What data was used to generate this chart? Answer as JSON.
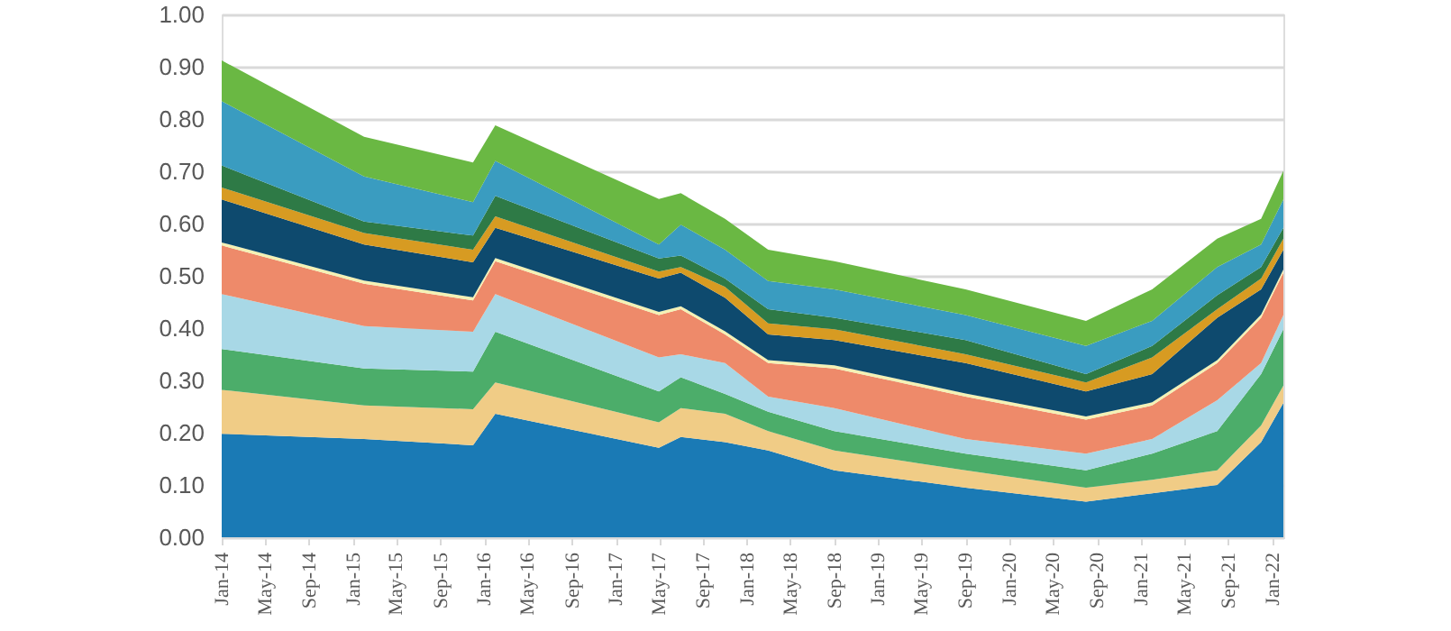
{
  "chart_data": {
    "type": "area",
    "stacked": true,
    "grid": "y",
    "x": [
      "2014-01",
      "2015-02",
      "2015-12",
      "2016-02",
      "2017-05",
      "2017-07",
      "2017-11",
      "2018-03",
      "2018-09",
      "2019-09",
      "2020-08",
      "2021-02",
      "2021-08",
      "2021-12",
      "2022-02"
    ],
    "xlim": [
      "2014-01",
      "2022-02"
    ],
    "xticks": [
      {
        "value": "2014-01",
        "label": "Jan-14"
      },
      {
        "value": "2014-05",
        "label": "May-14"
      },
      {
        "value": "2014-09",
        "label": "Sep-14"
      },
      {
        "value": "2015-01",
        "label": "Jan-15"
      },
      {
        "value": "2015-05",
        "label": "May-15"
      },
      {
        "value": "2015-09",
        "label": "Sep-15"
      },
      {
        "value": "2016-01",
        "label": "Jan-16"
      },
      {
        "value": "2016-05",
        "label": "May-16"
      },
      {
        "value": "2016-09",
        "label": "Sep-16"
      },
      {
        "value": "2017-01",
        "label": "Jan-17"
      },
      {
        "value": "2017-05",
        "label": "May-17"
      },
      {
        "value": "2017-09",
        "label": "Sep-17"
      },
      {
        "value": "2018-01",
        "label": "Jan-18"
      },
      {
        "value": "2018-05",
        "label": "May-18"
      },
      {
        "value": "2018-09",
        "label": "Sep-18"
      },
      {
        "value": "2019-01",
        "label": "Jan-19"
      },
      {
        "value": "2019-05",
        "label": "May-19"
      },
      {
        "value": "2019-09",
        "label": "Sep-19"
      },
      {
        "value": "2020-01",
        "label": "Jan-20"
      },
      {
        "value": "2020-05",
        "label": "May-20"
      },
      {
        "value": "2020-09",
        "label": "Sep-20"
      },
      {
        "value": "2021-01",
        "label": "Jan-21"
      },
      {
        "value": "2021-05",
        "label": "May-21"
      },
      {
        "value": "2021-09",
        "label": "Sep-21"
      },
      {
        "value": "2022-01",
        "label": "Jan-22"
      }
    ],
    "ylim": [
      0,
      1
    ],
    "yticks": [
      {
        "value": 0,
        "label": "0.00"
      },
      {
        "value": 0.1,
        "label": "0.10"
      },
      {
        "value": 0.2,
        "label": "0.20"
      },
      {
        "value": 0.3,
        "label": "0.30"
      },
      {
        "value": 0.4,
        "label": "0.40"
      },
      {
        "value": 0.5,
        "label": "0.50"
      },
      {
        "value": 0.6,
        "label": "0.60"
      },
      {
        "value": 0.7,
        "label": "0.70"
      },
      {
        "value": 0.8,
        "label": "0.80"
      },
      {
        "value": 0.9,
        "label": "0.90"
      },
      {
        "value": 1,
        "label": "1.00"
      }
    ],
    "series": [
      {
        "color": "#1a7ab5",
        "values": [
          0.198,
          0.188,
          0.176,
          0.236,
          0.171,
          0.192,
          0.182,
          0.166,
          0.128,
          0.095,
          0.068,
          0.084,
          0.1,
          0.182,
          0.257
        ]
      },
      {
        "color": "#f0cc86",
        "values": [
          0.084,
          0.064,
          0.069,
          0.06,
          0.049,
          0.055,
          0.054,
          0.037,
          0.038,
          0.033,
          0.027,
          0.026,
          0.028,
          0.032,
          0.033
        ]
      },
      {
        "color": "#4cad6a",
        "values": [
          0.078,
          0.071,
          0.072,
          0.097,
          0.059,
          0.059,
          0.038,
          0.037,
          0.037,
          0.032,
          0.033,
          0.05,
          0.075,
          0.098,
          0.108
        ]
      },
      {
        "color": "#a8d8e6",
        "values": [
          0.105,
          0.081,
          0.076,
          0.072,
          0.065,
          0.044,
          0.059,
          0.029,
          0.044,
          0.028,
          0.032,
          0.028,
          0.059,
          0.021,
          0.027
        ]
      },
      {
        "color": "#ee8a6a",
        "values": [
          0.093,
          0.081,
          0.06,
          0.063,
          0.081,
          0.086,
          0.055,
          0.064,
          0.076,
          0.081,
          0.065,
          0.064,
          0.071,
          0.087,
          0.081
        ]
      },
      {
        "color": "#f4f1b4",
        "values": [
          0.006,
          0.006,
          0.006,
          0.006,
          0.006,
          0.006,
          0.006,
          0.006,
          0.006,
          0.006,
          0.006,
          0.006,
          0.006,
          0.006,
          0.006
        ]
      },
      {
        "color": "#0e4a6e",
        "values": [
          0.082,
          0.069,
          0.067,
          0.058,
          0.064,
          0.064,
          0.064,
          0.049,
          0.048,
          0.058,
          0.048,
          0.054,
          0.081,
          0.048,
          0.038
        ]
      },
      {
        "color": "#d79b22",
        "values": [
          0.023,
          0.022,
          0.024,
          0.022,
          0.013,
          0.011,
          0.021,
          0.021,
          0.021,
          0.017,
          0.017,
          0.032,
          0.016,
          0.021,
          0.021
        ]
      },
      {
        "color": "#2e7a46",
        "values": [
          0.042,
          0.022,
          0.027,
          0.039,
          0.025,
          0.022,
          0.016,
          0.027,
          0.022,
          0.027,
          0.016,
          0.022,
          0.027,
          0.022,
          0.021
        ]
      },
      {
        "color": "#3a9cc0",
        "values": [
          0.123,
          0.086,
          0.064,
          0.067,
          0.027,
          0.059,
          0.055,
          0.054,
          0.054,
          0.048,
          0.054,
          0.048,
          0.054,
          0.043,
          0.054
        ]
      },
      {
        "color": "#6ab843",
        "values": [
          0.078,
          0.076,
          0.076,
          0.068,
          0.087,
          0.06,
          0.059,
          0.06,
          0.054,
          0.049,
          0.048,
          0.06,
          0.054,
          0.049,
          0.055
        ]
      }
    ]
  }
}
